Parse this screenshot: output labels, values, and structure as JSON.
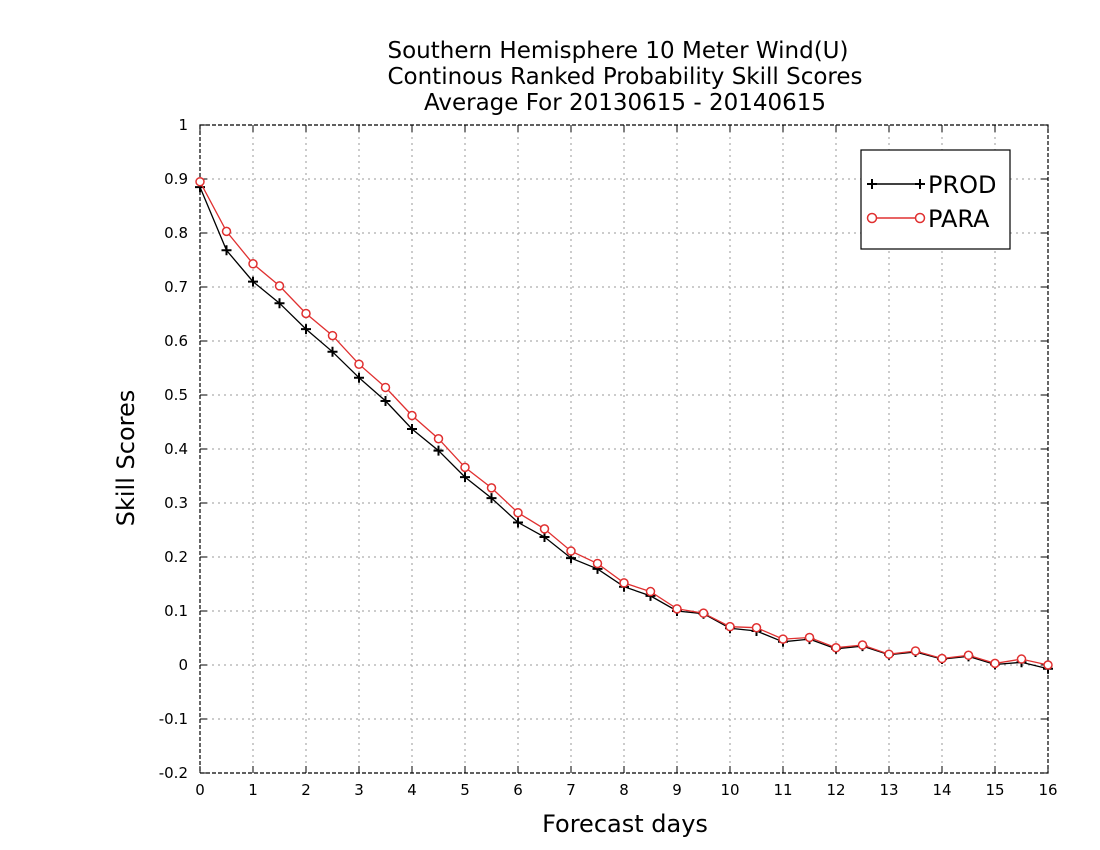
{
  "chart_data": {
    "type": "line",
    "title": [
      "Southern Hemisphere 10 Meter Wind(U)",
      "Continous Ranked Probability Skill Scores",
      "Average For 20130615 - 20140615"
    ],
    "xlabel": "Forecast days",
    "ylabel": "Skill Scores",
    "xlim": [
      0,
      16
    ],
    "ylim": [
      -0.2,
      1
    ],
    "xticks": [
      "0",
      "1",
      "2",
      "3",
      "4",
      "5",
      "6",
      "7",
      "8",
      "9",
      "10",
      "11",
      "12",
      "13",
      "14",
      "15",
      "16"
    ],
    "yticks": [
      "1",
      "0.9",
      "0.8",
      "0.7",
      "0.6",
      "0.5",
      "0.4",
      "0.3",
      "0.2",
      "0.1",
      "0",
      "-0.1",
      "-0.2"
    ],
    "grid": true,
    "legend_position": "top-right",
    "x": [
      0,
      0.5,
      1,
      1.5,
      2,
      2.5,
      3,
      3.5,
      4,
      4.5,
      5,
      5.5,
      6,
      6.5,
      7,
      7.5,
      8,
      8.5,
      9,
      9.5,
      10,
      10.5,
      11,
      11.5,
      12,
      12.5,
      13,
      13.5,
      14,
      14.5,
      15,
      15.5,
      16
    ],
    "series": [
      {
        "name": "PROD",
        "color": "#000000",
        "marker": "plus",
        "values": [
          0.885,
          0.768,
          0.71,
          0.67,
          0.622,
          0.58,
          0.532,
          0.489,
          0.437,
          0.397,
          0.348,
          0.309,
          0.264,
          0.237,
          0.198,
          0.178,
          0.145,
          0.128,
          0.1,
          0.095,
          0.068,
          0.063,
          0.043,
          0.048,
          0.03,
          0.035,
          0.019,
          0.024,
          0.011,
          0.016,
          0.001,
          0.005,
          -0.007
        ]
      },
      {
        "name": "PARA",
        "color": "#e03030",
        "marker": "circle",
        "values": [
          0.895,
          0.803,
          0.743,
          0.702,
          0.651,
          0.61,
          0.557,
          0.514,
          0.462,
          0.419,
          0.366,
          0.328,
          0.282,
          0.252,
          0.211,
          0.188,
          0.152,
          0.136,
          0.104,
          0.096,
          0.071,
          0.069,
          0.048,
          0.051,
          0.032,
          0.037,
          0.02,
          0.026,
          0.012,
          0.018,
          0.003,
          0.011,
          0.0
        ]
      }
    ]
  }
}
